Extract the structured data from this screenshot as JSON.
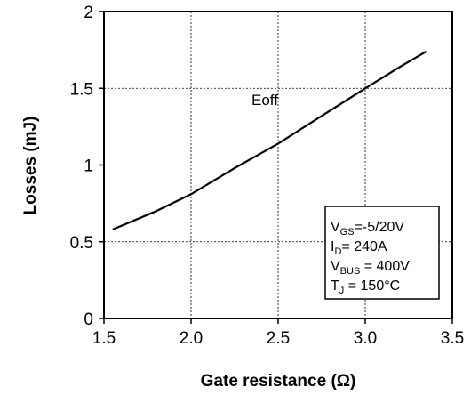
{
  "chart_data": {
    "type": "line",
    "title": "",
    "xlabel": "Gate resistance (Ω)",
    "ylabel": "Losses (mJ)",
    "xlim": [
      1.5,
      3.5
    ],
    "ylim": [
      0,
      2
    ],
    "x_ticks": [
      "1.5",
      "2.0",
      "2.5",
      "3.0",
      "3.5"
    ],
    "y_ticks": [
      "0",
      "0.5",
      "1",
      "1.5",
      "2"
    ],
    "grid": true,
    "series": [
      {
        "name": "Eoff",
        "color": "#000000",
        "x": [
          1.55,
          1.8,
          2.0,
          2.25,
          2.5,
          2.75,
          3.0,
          3.2,
          3.35
        ],
        "y": [
          0.58,
          0.7,
          0.81,
          0.98,
          1.14,
          1.32,
          1.5,
          1.64,
          1.74
        ]
      }
    ],
    "annotations": {
      "series_label": "Eoff",
      "conditions": [
        {
          "main": "V",
          "sub": "GS",
          "rest": "=-5/20V"
        },
        {
          "main": "I",
          "sub": "D",
          "rest": "= 240A"
        },
        {
          "main": "V",
          "sub": "BUS",
          "rest": " = 400V"
        },
        {
          "main": "T",
          "sub": "J",
          "rest": " = 150°C"
        }
      ]
    }
  }
}
